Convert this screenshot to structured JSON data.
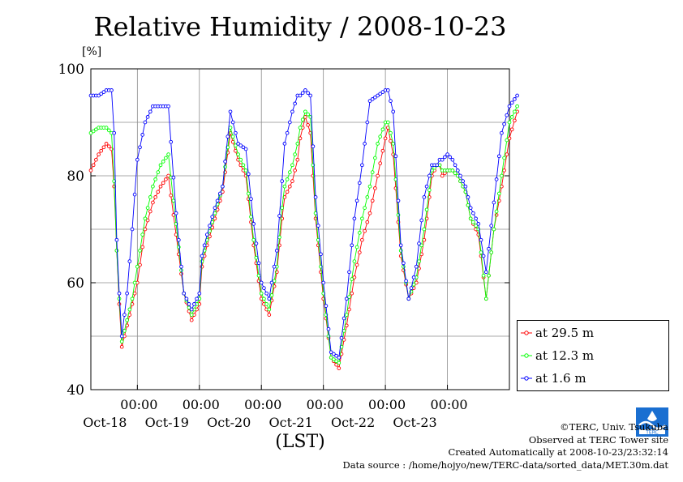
{
  "header": {
    "title": "Relative Humidity / 2008-10-23",
    "unit": "[%]"
  },
  "credits": {
    "copyright": "©TERC, Univ. Tsukuba",
    "observed": "Observed at TERC Tower site",
    "created": "Created Automatically at 2008-10-23/23:32:14",
    "source": "Data source : /home/hojyo/new/TERC-data/sorted_data/MET.30m.dat"
  },
  "chart_data": {
    "type": "line",
    "title": "Relative Humidity / 2008-10-23",
    "ylabel": "[%]",
    "xlabel": "(LST)",
    "ylim": [
      40,
      100
    ],
    "yticks": [
      "40",
      "60",
      "80",
      "100"
    ],
    "xlim": [
      "2008-10-17 06:00",
      "2008-10-24 00:00"
    ],
    "xticks": [
      {
        "time": "00:00",
        "day": "Oct-18",
        "at": "2008-10-18 00:00"
      },
      {
        "time": "00:00",
        "day": "Oct-19",
        "at": "2008-10-19 00:00"
      },
      {
        "time": "00:00",
        "day": "Oct-20",
        "at": "2008-10-20 00:00"
      },
      {
        "time": "00:00",
        "day": "Oct-21",
        "at": "2008-10-21 00:00"
      },
      {
        "time": "00:00",
        "day": "Oct-22",
        "at": "2008-10-22 00:00"
      },
      {
        "time": "00:00",
        "day": "Oct-23",
        "at": "2008-10-23 00:00"
      }
    ],
    "grid": true,
    "legend_position": "bottom-right",
    "series": [
      {
        "name": "at 29.5 m",
        "color": "#ff0000",
        "t": [
          0,
          3,
          6,
          8,
          9,
          10,
          11,
          12,
          14,
          16,
          18,
          21,
          24,
          27,
          30,
          33,
          36,
          39,
          42,
          43,
          45,
          48,
          51,
          54,
          57,
          60,
          63,
          66,
          69,
          72,
          74,
          75,
          78,
          80,
          81,
          83,
          85,
          87,
          90,
          93,
          96,
          99,
          102,
          105,
          108,
          111,
          114,
          115,
          117,
          120,
          123,
          126,
          129,
          132,
          134,
          135,
          136,
          138,
          140,
          142,
          145,
          147,
          150,
          153,
          156,
          159,
          162,
          165
        ],
        "v": [
          81,
          84,
          86,
          85,
          78,
          66,
          56,
          48,
          52,
          56,
          60,
          70,
          75,
          78,
          80,
          69,
          58,
          53,
          56,
          63,
          67,
          72,
          77,
          88,
          83,
          80,
          67,
          57,
          54,
          62,
          72,
          76,
          79,
          83,
          87,
          91,
          88,
          72,
          57,
          46,
          44,
          52,
          61,
          68,
          73,
          80,
          87,
          89,
          84,
          65,
          57,
          60,
          68,
          80,
          82,
          82,
          80,
          81,
          81,
          80,
          77,
          72,
          69,
          57,
          70,
          78,
          87,
          92
        ]
      },
      {
        "name": "at 12.3 m",
        "color": "#00ff00",
        "t": [
          0,
          3,
          6,
          8,
          9,
          10,
          11,
          12,
          14,
          16,
          18,
          21,
          24,
          27,
          30,
          33,
          36,
          39,
          42,
          43,
          45,
          48,
          51,
          54,
          57,
          60,
          63,
          66,
          69,
          72,
          74,
          75,
          78,
          80,
          81,
          83,
          85,
          87,
          90,
          93,
          96,
          99,
          102,
          105,
          108,
          111,
          114,
          115,
          117,
          120,
          123,
          126,
          129,
          132,
          134,
          135,
          136,
          138,
          140,
          142,
          145,
          147,
          150,
          153,
          156,
          159,
          162,
          165
        ],
        "v": [
          88,
          89,
          89,
          88,
          79,
          66,
          57,
          49,
          53,
          57,
          63,
          72,
          78,
          82,
          84,
          71,
          58,
          54,
          57,
          64,
          68,
          73,
          78,
          89,
          84,
          81,
          68,
          58,
          55,
          63,
          74,
          78,
          82,
          86,
          89,
          92,
          91,
          73,
          58,
          46,
          45,
          54,
          64,
          72,
          78,
          86,
          90,
          90,
          86,
          66,
          57,
          61,
          70,
          81,
          82,
          82,
          81,
          81,
          81,
          80,
          77,
          72,
          70,
          57,
          70,
          80,
          90,
          93
        ]
      },
      {
        "name": "at 1.6 m",
        "color": "#0000ff",
        "t": [
          0,
          3,
          6,
          8,
          9,
          10,
          11,
          12,
          14,
          16,
          18,
          21,
          24,
          27,
          30,
          33,
          36,
          39,
          42,
          43,
          45,
          48,
          51,
          54,
          57,
          60,
          63,
          66,
          69,
          72,
          74,
          75,
          78,
          80,
          81,
          83,
          85,
          87,
          90,
          93,
          96,
          99,
          102,
          105,
          108,
          111,
          114,
          115,
          117,
          120,
          123,
          126,
          129,
          132,
          134,
          135,
          136,
          138,
          140,
          142,
          145,
          147,
          150,
          153,
          156,
          159,
          162,
          165
        ],
        "v": [
          95,
          95,
          96,
          96,
          88,
          68,
          58,
          50,
          58,
          70,
          83,
          90,
          93,
          93,
          93,
          73,
          58,
          55,
          58,
          65,
          69,
          74,
          78,
          92,
          86,
          85,
          71,
          60,
          57,
          66,
          79,
          86,
          92,
          95,
          95,
          96,
          95,
          76,
          60,
          47,
          46,
          57,
          72,
          82,
          94,
          95,
          96,
          96,
          92,
          67,
          57,
          63,
          76,
          82,
          82,
          83,
          83,
          84,
          83,
          81,
          78,
          74,
          71,
          62,
          75,
          88,
          93,
          95
        ]
      }
    ]
  }
}
